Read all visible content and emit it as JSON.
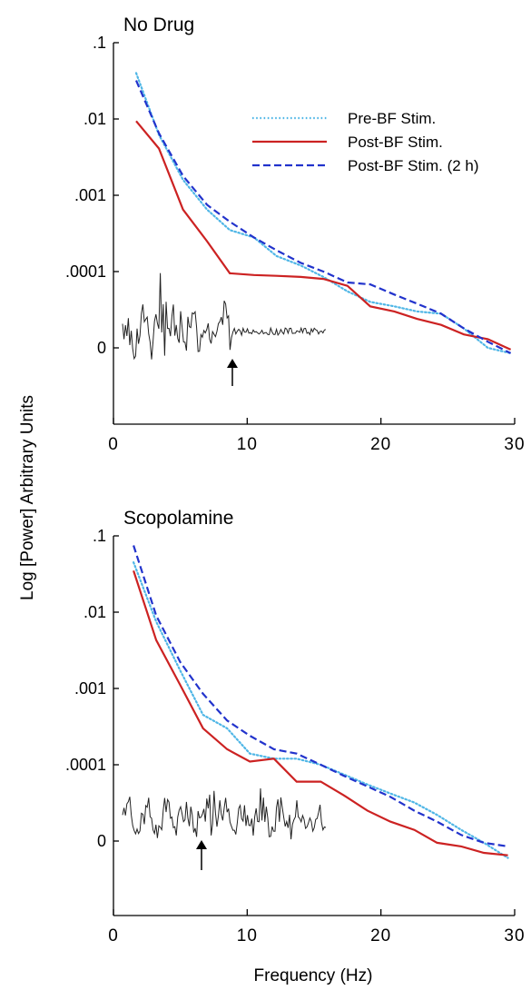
{
  "figure": {
    "ylabel": "Log  [Power]  Arbitrary  Units",
    "xlabel": "Frequency (Hz)"
  },
  "legend": [
    {
      "label": "Pre-BF Stim.",
      "color": "#4fb6e6",
      "style": "dotted"
    },
    {
      "label": "Post-BF Stim.",
      "color": "#cc2222",
      "style": "solid"
    },
    {
      "label": "Post-BF Stim. (2 h)",
      "color": "#2233cc",
      "style": "dashed"
    }
  ],
  "chart_data": [
    {
      "type": "line",
      "title": "No Drug",
      "xlabel": "Frequency (Hz)",
      "ylabel": "Log  [Power]  Arbitrary  Units",
      "xlim": [
        0,
        30
      ],
      "x_ticks": [
        "0",
        "10",
        "20",
        "30"
      ],
      "y_ticks": [
        ".1",
        ".01",
        ".001",
        ".0001",
        "0"
      ],
      "y_scale": "log (one decade per tick)",
      "series": [
        {
          "name": "Pre-BF Stim.",
          "style": "dotted",
          "color": "#4fb6e6",
          "x": [
            1.7,
            3.4,
            5.2,
            7.0,
            8.7,
            10.5,
            12.2,
            14.0,
            15.7,
            17.5,
            19.2,
            21.0,
            22.7,
            24.5,
            26.2,
            28.0,
            29.7
          ],
          "y": [
            0.04,
            0.0062,
            0.0016,
            0.00065,
            0.00035,
            0.00028,
            0.00016,
            0.00012,
            8.5e-05,
            5.5e-05,
            4e-05,
            3.5e-05,
            3e-05,
            2.8e-05,
            1.8e-05,
            1e-05,
            8.5e-06
          ]
        },
        {
          "name": "Post-BF Stim.",
          "style": "solid",
          "color": "#cc2222",
          "x": [
            1.7,
            3.4,
            5.2,
            7.0,
            8.7,
            10.5,
            12.2,
            14.0,
            15.7,
            17.5,
            19.2,
            21.0,
            22.7,
            24.5,
            26.2,
            28.0,
            29.7
          ],
          "y": [
            0.0094,
            0.0041,
            0.00065,
            0.00025,
            9.5e-05,
            9e-05,
            8.8e-05,
            8.5e-05,
            8e-05,
            6.5e-05,
            3.5e-05,
            3e-05,
            2.4e-05,
            2e-05,
            1.5e-05,
            1.3e-05,
            9.5e-06
          ]
        },
        {
          "name": "Post-BF Stim. (2 h)",
          "style": "dashed",
          "color": "#2233cc",
          "x": [
            1.7,
            3.4,
            5.2,
            7.0,
            8.7,
            10.5,
            12.2,
            14.0,
            15.7,
            17.5,
            19.2,
            21.0,
            22.7,
            24.5,
            26.2,
            28.0,
            29.7
          ],
          "y": [
            0.032,
            0.0065,
            0.0018,
            0.00075,
            0.00045,
            0.00028,
            0.00019,
            0.00013,
            0.0001,
            7.2e-05,
            6.8e-05,
            5e-05,
            3.8e-05,
            2.8e-05,
            1.8e-05,
            1.2e-05,
            8.5e-06
          ]
        }
      ]
    },
    {
      "type": "line",
      "title": "Scopolamine",
      "xlabel": "Frequency (Hz)",
      "ylabel": "Log  [Power]  Arbitrary  Units",
      "xlim": [
        0,
        30
      ],
      "x_ticks": [
        "0",
        "10",
        "20",
        "30"
      ],
      "y_ticks": [
        ".1",
        ".01",
        ".001",
        ".0001",
        "0"
      ],
      "y_scale": "log (one decade per tick)",
      "series": [
        {
          "name": "Pre-BF Stim.",
          "style": "dotted",
          "color": "#4fb6e6",
          "x": [
            1.5,
            3.2,
            5.0,
            6.7,
            8.5,
            10.2,
            12.0,
            13.7,
            15.5,
            17.2,
            19.0,
            20.7,
            22.5,
            24.2,
            26.0,
            27.7,
            29.5
          ],
          "y": [
            0.045,
            0.0075,
            0.0017,
            0.00045,
            0.0003,
            0.00014,
            0.00012,
            0.00012,
            0.0001,
            7.5e-05,
            5.5e-05,
            4.2e-05,
            3.2e-05,
            2.2e-05,
            1.4e-05,
            9.5e-06,
            6e-06
          ]
        },
        {
          "name": "Post-BF Stim.",
          "style": "solid",
          "color": "#cc2222",
          "x": [
            1.5,
            3.2,
            5.0,
            6.7,
            8.5,
            10.2,
            12.0,
            13.7,
            15.5,
            17.2,
            19.0,
            20.7,
            22.5,
            24.2,
            26.0,
            27.7,
            29.5
          ],
          "y": [
            0.035,
            0.0043,
            0.0011,
            0.0003,
            0.00016,
            0.00011,
            0.00012,
            6e-05,
            6e-05,
            4e-05,
            2.5e-05,
            1.8e-05,
            1.4e-05,
            9.5e-06,
            8.5e-06,
            7e-06,
            6.5e-06
          ]
        },
        {
          "name": "Post-BF Stim. (2 h)",
          "style": "dashed",
          "color": "#2233cc",
          "x": [
            1.5,
            3.2,
            5.0,
            6.7,
            8.5,
            10.2,
            12.0,
            13.7,
            15.5,
            17.2,
            19.0,
            20.7,
            22.5,
            24.2,
            26.0,
            27.7,
            29.5
          ],
          "y": [
            0.075,
            0.009,
            0.0022,
            0.00085,
            0.00038,
            0.00024,
            0.00016,
            0.00014,
            0.0001,
            7.2e-05,
            5.2e-05,
            3.8e-05,
            2.5e-05,
            1.8e-05,
            1.2e-05,
            9.5e-06,
            8.5e-06
          ]
        }
      ]
    }
  ]
}
